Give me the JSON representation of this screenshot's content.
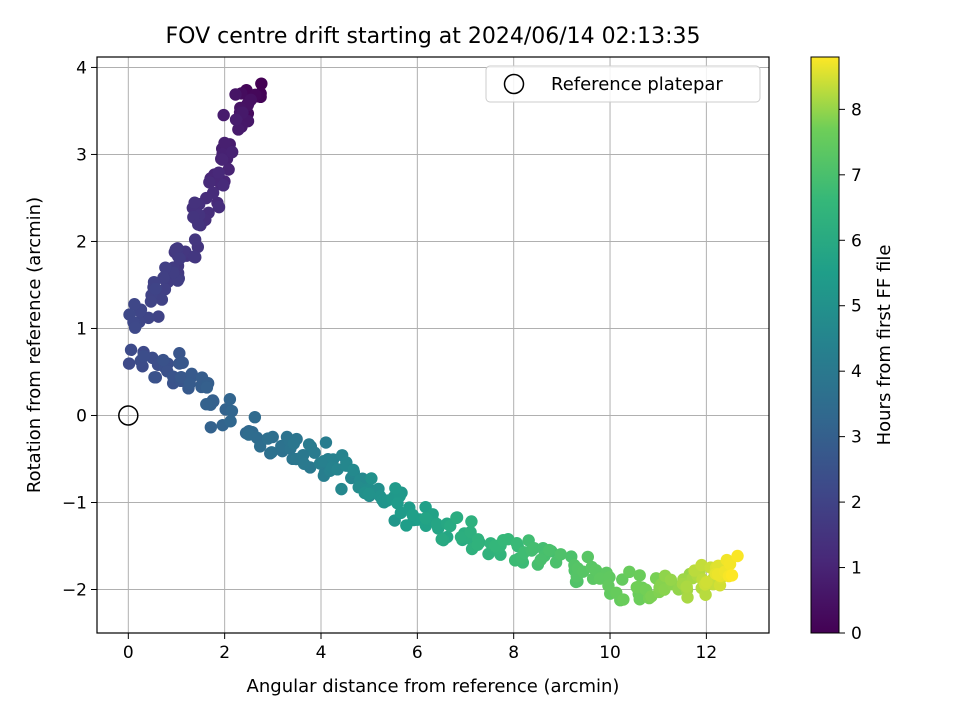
{
  "chart_data": {
    "type": "scatter",
    "title": "FOV centre drift starting at 2024/06/14 02:13:35",
    "xlabel": "Angular distance from reference (arcmin)",
    "ylabel": "Rotation from reference (arcmin)",
    "xlim": [
      -0.65,
      13.3
    ],
    "ylim": [
      -2.5,
      4.12
    ],
    "xticks": [
      0,
      2,
      4,
      6,
      8,
      10,
      12
    ],
    "yticks": [
      -2,
      -1,
      0,
      1,
      2,
      3,
      4
    ],
    "grid": true,
    "legend": {
      "placement": "top-right",
      "entries": [
        "Reference platepar"
      ]
    },
    "reference_point": {
      "x": 0,
      "y": 0
    },
    "colorbar": {
      "label": "Hours from first FF file",
      "range": [
        0,
        8.8
      ],
      "ticks": [
        0,
        1,
        2,
        3,
        4,
        5,
        6,
        7,
        8
      ],
      "colormap": "viridis"
    },
    "segments": [
      {
        "hours": [
          0.0,
          0.8
        ],
        "from": [
          2.65,
          3.75
        ],
        "to": [
          2.25,
          3.35
        ],
        "n": 22
      },
      {
        "hours": [
          0.8,
          1.5
        ],
        "from": [
          2.1,
          3.1
        ],
        "to": [
          1.45,
          2.2
        ],
        "n": 32
      },
      {
        "hours": [
          1.5,
          2.2
        ],
        "from": [
          1.4,
          2.0
        ],
        "to": [
          0.1,
          1.1
        ],
        "n": 42
      },
      {
        "hours": [
          2.2,
          3.0
        ],
        "from": [
          0.2,
          0.7
        ],
        "to": [
          1.7,
          0.3
        ],
        "n": 32
      },
      {
        "hours": [
          3.0,
          3.8
        ],
        "from": [
          1.6,
          0.15
        ],
        "to": [
          3.4,
          -0.45
        ],
        "n": 24
      },
      {
        "hours": [
          3.8,
          4.6
        ],
        "from": [
          3.5,
          -0.4
        ],
        "to": [
          4.6,
          -0.7
        ],
        "n": 26
      },
      {
        "hours": [
          4.6,
          5.4
        ],
        "from": [
          4.6,
          -0.7
        ],
        "to": [
          5.8,
          -1.1
        ],
        "n": 26
      },
      {
        "hours": [
          5.4,
          6.2
        ],
        "from": [
          5.8,
          -1.1
        ],
        "to": [
          7.0,
          -1.4
        ],
        "n": 26
      },
      {
        "hours": [
          6.2,
          6.9
        ],
        "from": [
          7.0,
          -1.4
        ],
        "to": [
          8.5,
          -1.6
        ],
        "n": 26
      },
      {
        "hours": [
          6.9,
          7.6
        ],
        "from": [
          8.5,
          -1.6
        ],
        "to": [
          10.4,
          -2.0
        ],
        "n": 30
      },
      {
        "hours": [
          7.6,
          8.2
        ],
        "from": [
          10.4,
          -2.0
        ],
        "to": [
          11.8,
          -1.95
        ],
        "n": 28
      },
      {
        "hours": [
          8.2,
          8.8
        ],
        "from": [
          11.8,
          -1.95
        ],
        "to": [
          12.5,
          -1.75
        ],
        "n": 28
      }
    ],
    "point_spread": [
      0.22,
      0.18
    ]
  }
}
